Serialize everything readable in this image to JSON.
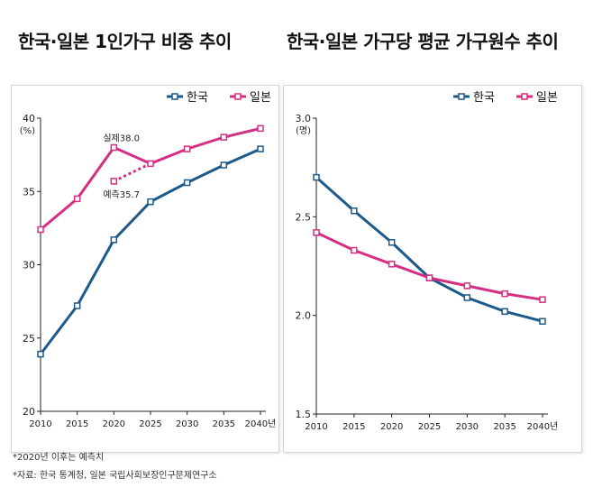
{
  "titles": {
    "left": "한국·일본 1인가구 비중 추이",
    "right": "한국·일본 가구당 평균 가구원수 추이"
  },
  "footnotes": [
    "*2020년 이후는 예측치",
    "*자료: 한국 통계청, 일본 국립사회보장인구문제연구소"
  ],
  "colors": {
    "korea": "#1d5a8c",
    "japan": "#d62e83"
  },
  "chart_data": [
    {
      "type": "line",
      "title": "한국·일본 1인가구 비중 추이",
      "unit_label": "(%)",
      "ylim": [
        20,
        40
      ],
      "yticks": [
        "40",
        "35",
        "30",
        "25",
        "20"
      ],
      "x": [
        "2010",
        "2015",
        "2020",
        "2025",
        "2030",
        "2035",
        "2040년"
      ],
      "legend_position": "top-right",
      "grid": false,
      "series": [
        {
          "name": "한국",
          "color": "#1d5a8c",
          "values": [
            23.9,
            27.2,
            31.7,
            34.3,
            35.6,
            36.8,
            37.9
          ]
        },
        {
          "name": "일본",
          "color": "#d62e83",
          "values": [
            32.4,
            34.5,
            38.0,
            36.9,
            37.9,
            38.7,
            39.3
          ]
        }
      ],
      "projection": {
        "name": "일본",
        "from_x": "2020",
        "values": [
          35.7,
          36.9
        ]
      },
      "annotations": [
        {
          "text": "실제38.0",
          "x": "2020",
          "y": 38.0
        },
        {
          "text": "예측35.7",
          "x": "2020",
          "y": 35.7
        }
      ]
    },
    {
      "type": "line",
      "title": "한국·일본 가구당 평균 가구원수 추이",
      "unit_label": "(명)",
      "ylim": [
        1.5,
        3.0
      ],
      "yticks": [
        "3.0",
        "2.5",
        "2.0",
        "1.5"
      ],
      "x": [
        "2010",
        "2015",
        "2020",
        "2025",
        "2030",
        "2035",
        "2040년"
      ],
      "legend_position": "top-right",
      "grid": false,
      "series": [
        {
          "name": "한국",
          "color": "#1d5a8c",
          "values": [
            2.7,
            2.53,
            2.37,
            2.19,
            2.09,
            2.02,
            1.97
          ]
        },
        {
          "name": "일본",
          "color": "#d62e83",
          "values": [
            2.42,
            2.33,
            2.26,
            2.19,
            2.15,
            2.11,
            2.08
          ]
        }
      ]
    }
  ]
}
